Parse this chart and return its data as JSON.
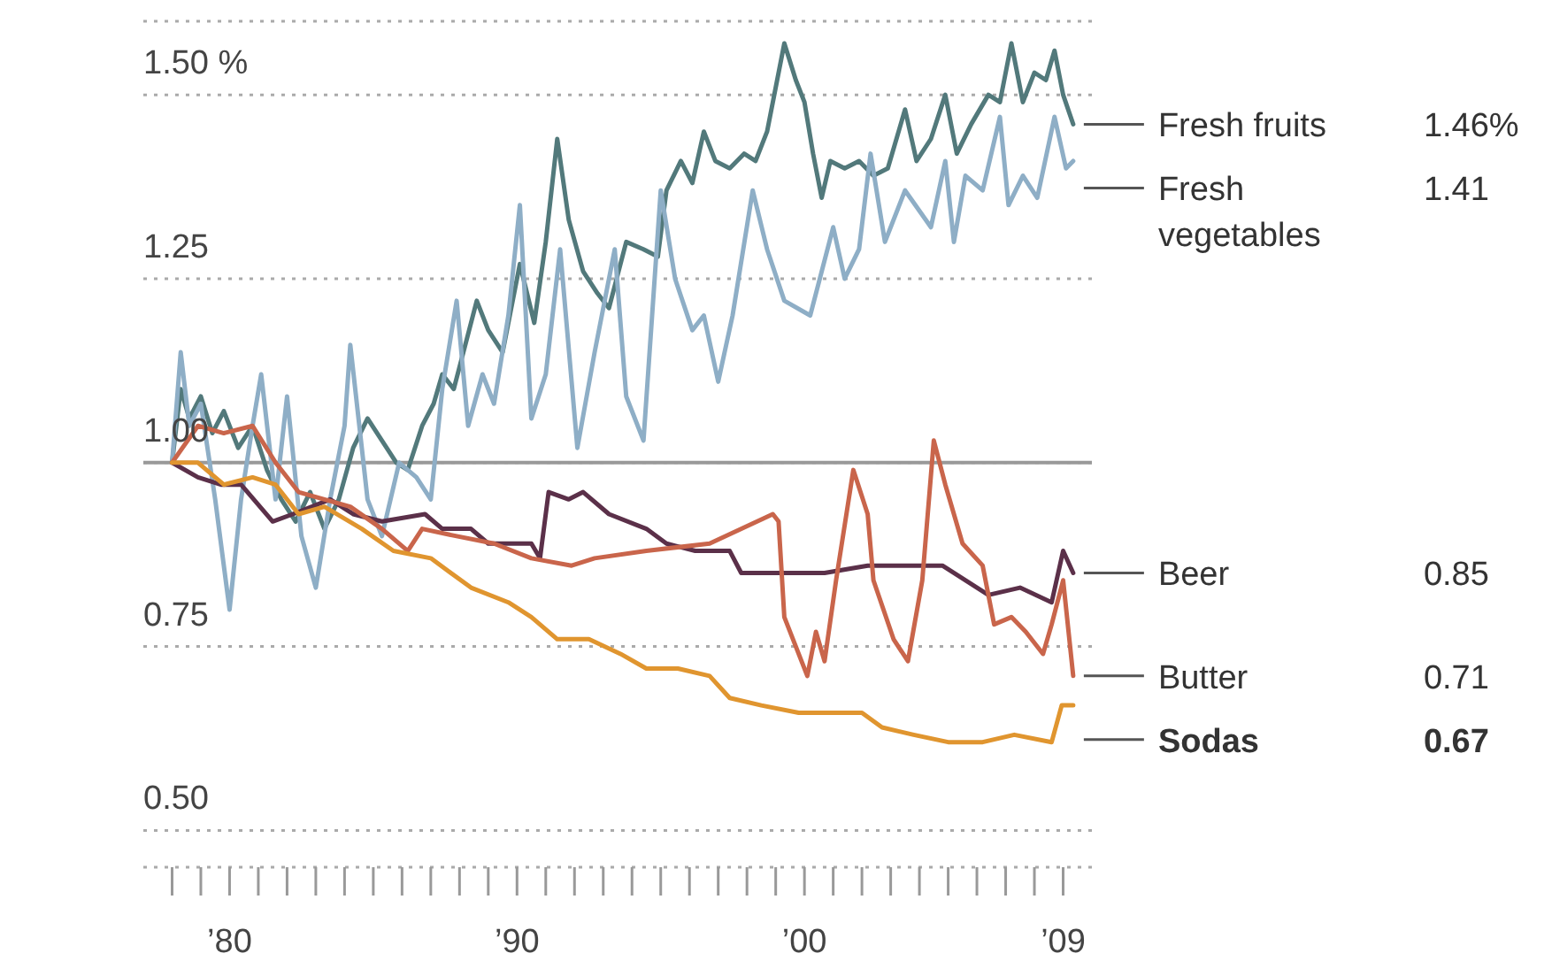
{
  "chart_data": {
    "type": "line",
    "xlim": [
      1977,
      2010
    ],
    "xticks": [
      {
        "value": 1978,
        "label": null
      },
      {
        "value": 1979,
        "label": null
      },
      {
        "value": 1980,
        "label": "’80"
      },
      {
        "value": 1981,
        "label": null
      },
      {
        "value": 1982,
        "label": null
      },
      {
        "value": 1983,
        "label": null
      },
      {
        "value": 1984,
        "label": null
      },
      {
        "value": 1985,
        "label": null
      },
      {
        "value": 1986,
        "label": null
      },
      {
        "value": 1987,
        "label": null
      },
      {
        "value": 1988,
        "label": null
      },
      {
        "value": 1989,
        "label": null
      },
      {
        "value": 1990,
        "label": "’90"
      },
      {
        "value": 1991,
        "label": null
      },
      {
        "value": 1992,
        "label": null
      },
      {
        "value": 1993,
        "label": null
      },
      {
        "value": 1994,
        "label": null
      },
      {
        "value": 1995,
        "label": null
      },
      {
        "value": 1996,
        "label": null
      },
      {
        "value": 1997,
        "label": null
      },
      {
        "value": 1998,
        "label": null
      },
      {
        "value": 1999,
        "label": null
      },
      {
        "value": 2000,
        "label": "’00"
      },
      {
        "value": 2001,
        "label": null
      },
      {
        "value": 2002,
        "label": null
      },
      {
        "value": 2003,
        "label": null
      },
      {
        "value": 2004,
        "label": null
      },
      {
        "value": 2005,
        "label": null
      },
      {
        "value": 2006,
        "label": null
      },
      {
        "value": 2007,
        "label": null
      },
      {
        "value": 2008,
        "label": null
      },
      {
        "value": 2009,
        "label": "’09"
      }
    ],
    "ylim": [
      0.45,
      1.6
    ],
    "yticks": [
      {
        "value": 0.5,
        "label": "0.50"
      },
      {
        "value": 0.75,
        "label": "0.75"
      },
      {
        "value": 1,
        "label": "1.00"
      },
      {
        "value": 1.25,
        "label": "1.25"
      },
      {
        "value": 1.5,
        "label": "1.50 %"
      }
    ],
    "grid": "y",
    "ref_lines": [
      {
        "axis": "y",
        "value": 1,
        "color": "#999999"
      }
    ],
    "annotations": [
      "1.46%",
      "1.41",
      "0.85",
      "0.71",
      "0.67"
    ],
    "series": [
      {
        "name": "Fresh fruits",
        "color": "#52797b",
        "x": [
          1978.0,
          1978.3,
          1978.6,
          1979.0,
          1979.4,
          1979.8,
          1980.3,
          1980.8,
          1981.3,
          1981.8,
          1982.3,
          1982.8,
          1983.3,
          1983.8,
          1984.3,
          1984.8,
          1985.3,
          1985.8,
          1986.2,
          1986.7,
          1987.1,
          1987.4,
          1987.8,
          1988.2,
          1988.6,
          1989.0,
          1989.5,
          1990.1,
          1990.6,
          1991.0,
          1991.4,
          1991.8,
          1992.3,
          1992.8,
          1993.2,
          1993.8,
          1994.4,
          1994.9,
          1995.2,
          1995.7,
          1996.1,
          1996.5,
          1996.9,
          1997.4,
          1997.9,
          1998.3,
          1998.7,
          1999.3,
          1999.7,
          2000.0,
          2000.3,
          2000.6,
          2000.9,
          2001.4,
          2001.9,
          2002.4,
          2002.9,
          2003.5,
          2003.9,
          2004.4,
          2004.9,
          2005.3,
          2005.8,
          2006.4,
          2006.8,
          2007.2,
          2007.6,
          2008.0,
          2008.4,
          2008.7,
          2009.0,
          2009.35
        ],
        "values": [
          1.0,
          1.1,
          1.06,
          1.09,
          1.04,
          1.07,
          1.02,
          1.05,
          0.99,
          0.95,
          0.92,
          0.96,
          0.91,
          0.95,
          1.02,
          1.06,
          1.03,
          1.0,
          0.99,
          1.05,
          1.08,
          1.12,
          1.1,
          1.16,
          1.22,
          1.18,
          1.15,
          1.27,
          1.19,
          1.3,
          1.44,
          1.33,
          1.26,
          1.23,
          1.21,
          1.3,
          1.29,
          1.28,
          1.37,
          1.41,
          1.38,
          1.45,
          1.41,
          1.4,
          1.42,
          1.41,
          1.45,
          1.57,
          1.52,
          1.49,
          1.42,
          1.36,
          1.41,
          1.4,
          1.41,
          1.39,
          1.4,
          1.48,
          1.41,
          1.44,
          1.5,
          1.42,
          1.46,
          1.5,
          1.49,
          1.57,
          1.49,
          1.53,
          1.52,
          1.56,
          1.5,
          1.46
        ]
      },
      {
        "name": "Fresh vegetables",
        "color": "#8eaec6",
        "x": [
          1978.0,
          1978.3,
          1978.6,
          1979.0,
          1979.5,
          1980.0,
          1980.4,
          1980.8,
          1981.1,
          1981.6,
          1982.0,
          1982.5,
          1983.0,
          1983.5,
          1984.0,
          1984.2,
          1984.8,
          1985.3,
          1985.9,
          1986.5,
          1987.0,
          1987.4,
          1987.9,
          1988.3,
          1988.8,
          1989.2,
          1989.7,
          1990.1,
          1990.5,
          1991.0,
          1991.5,
          1992.1,
          1992.7,
          1993.4,
          1993.8,
          1994.4,
          1995.0,
          1995.5,
          1996.1,
          1996.5,
          1997.0,
          1997.5,
          1998.2,
          1998.7,
          1999.3,
          2000.2,
          2001.0,
          2001.4,
          2001.9,
          2002.3,
          2002.8,
          2003.5,
          2004.4,
          2004.9,
          2005.2,
          2005.6,
          2006.2,
          2006.8,
          2007.1,
          2007.6,
          2008.1,
          2008.7,
          2009.1,
          2009.35
        ],
        "values": [
          1.0,
          1.15,
          1.05,
          1.08,
          0.95,
          0.8,
          0.95,
          1.05,
          1.12,
          0.95,
          1.09,
          0.9,
          0.83,
          0.95,
          1.05,
          1.16,
          0.95,
          0.9,
          1.0,
          0.98,
          0.95,
          1.1,
          1.22,
          1.05,
          1.12,
          1.08,
          1.2,
          1.35,
          1.06,
          1.12,
          1.29,
          1.02,
          1.15,
          1.29,
          1.09,
          1.03,
          1.37,
          1.25,
          1.18,
          1.2,
          1.11,
          1.2,
          1.37,
          1.29,
          1.22,
          1.2,
          1.32,
          1.25,
          1.29,
          1.42,
          1.3,
          1.37,
          1.32,
          1.41,
          1.3,
          1.39,
          1.37,
          1.47,
          1.35,
          1.39,
          1.36,
          1.47,
          1.4,
          1.41
        ]
      },
      {
        "name": "Beer",
        "color": "#5b3049",
        "x": [
          1978.0,
          1978.9,
          1979.7,
          1980.4,
          1981.5,
          1982.2,
          1983.5,
          1984.3,
          1985.3,
          1986.8,
          1987.4,
          1988.4,
          1989.0,
          1990.5,
          1990.8,
          1991.1,
          1991.8,
          1992.3,
          1993.2,
          1994.5,
          1995.2,
          1996.2,
          1997.4,
          1997.8,
          2000.7,
          2002.2,
          2004.0,
          2004.8,
          2006.4,
          2007.5,
          2008.6,
          2009.0,
          2009.35
        ],
        "values": [
          1.0,
          0.98,
          0.97,
          0.97,
          0.92,
          0.93,
          0.95,
          0.93,
          0.92,
          0.93,
          0.91,
          0.91,
          0.89,
          0.89,
          0.87,
          0.96,
          0.95,
          0.96,
          0.93,
          0.91,
          0.89,
          0.88,
          0.88,
          0.85,
          0.85,
          0.86,
          0.86,
          0.86,
          0.82,
          0.83,
          0.81,
          0.88,
          0.85
        ]
      },
      {
        "name": "Butter",
        "color": "#c9654b",
        "x": [
          1978.0,
          1978.9,
          1979.8,
          1980.8,
          1981.6,
          1982.4,
          1983.3,
          1984.2,
          1985.3,
          1986.2,
          1986.7,
          1987.9,
          1989.2,
          1990.5,
          1991.9,
          1992.7,
          1994.5,
          1996.7,
          1998.9,
          1999.1,
          1999.3,
          2000.1,
          2000.4,
          2000.7,
          2001.1,
          2001.7,
          2002.2,
          2002.4,
          2003.1,
          2003.6,
          2004.1,
          2004.5,
          2004.9,
          2005.5,
          2006.2,
          2006.6,
          2007.2,
          2007.7,
          2008.3,
          2008.6,
          2009.0,
          2009.35
        ],
        "values": [
          1.0,
          1.05,
          1.04,
          1.05,
          1.0,
          0.96,
          0.95,
          0.94,
          0.91,
          0.88,
          0.91,
          0.9,
          0.89,
          0.87,
          0.86,
          0.87,
          0.88,
          0.89,
          0.93,
          0.92,
          0.79,
          0.71,
          0.77,
          0.73,
          0.84,
          0.99,
          0.93,
          0.84,
          0.76,
          0.73,
          0.84,
          1.03,
          0.97,
          0.89,
          0.86,
          0.78,
          0.79,
          0.77,
          0.74,
          0.78,
          0.84,
          0.71
        ]
      },
      {
        "name": "Sodas",
        "color": "#e0952f",
        "x": [
          1978.0,
          1978.9,
          1979.8,
          1980.8,
          1981.6,
          1982.4,
          1983.3,
          1984.6,
          1985.7,
          1987.0,
          1988.4,
          1989.7,
          1990.5,
          1991.4,
          1992.5,
          1993.6,
          1994.5,
          1995.6,
          1996.7,
          1997.4,
          1998.5,
          1999.8,
          2001.1,
          2002.0,
          2002.7,
          2003.8,
          2005.0,
          2006.2,
          2007.3,
          2008.6,
          2008.95,
          2009.35
        ],
        "values": [
          1.0,
          1.0,
          0.97,
          0.98,
          0.97,
          0.93,
          0.94,
          0.91,
          0.88,
          0.87,
          0.83,
          0.81,
          0.79,
          0.76,
          0.76,
          0.74,
          0.72,
          0.72,
          0.71,
          0.68,
          0.67,
          0.66,
          0.66,
          0.66,
          0.64,
          0.63,
          0.62,
          0.62,
          0.63,
          0.62,
          0.67,
          0.67
        ]
      }
    ]
  }
}
